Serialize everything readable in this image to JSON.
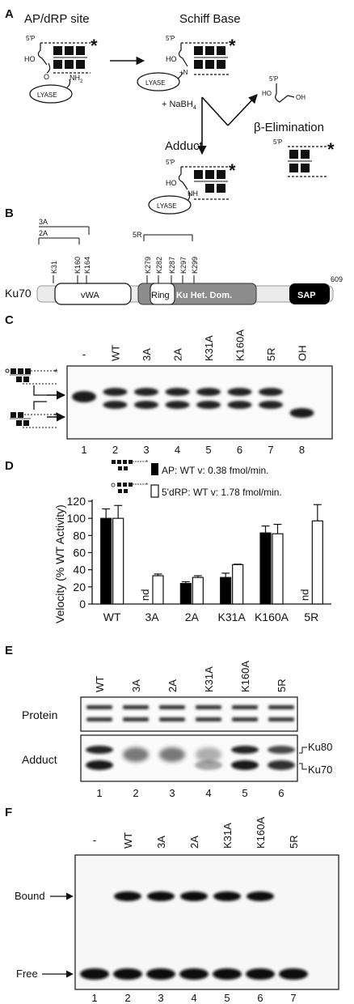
{
  "panelA": {
    "letter": "A",
    "ap_site": "AP/dRP site",
    "schiff": "Schiff Base",
    "adduct": "Adduct",
    "beta": "β-Elimination",
    "nabh4": "+ NaBH",
    "nabh4_sub": "4",
    "p5": "5'P",
    "ho": "HO",
    "o": "O",
    "nh2": "NH",
    "nh2_sub": "2",
    "plus_n": "+N",
    "nh": "NH",
    "oh": "OH",
    "lyase": "LYASE"
  },
  "panelB": {
    "letter": "B",
    "protein": "Ku70",
    "end": "609",
    "domains": [
      "vWA",
      "Ring",
      "Ku Het. Dom.",
      "SAP"
    ],
    "group_3a": "3A",
    "group_2a": "2A",
    "group_5r": "5R",
    "sites_left": [
      "K31",
      "K160",
      "K164"
    ],
    "sites_right": [
      "K279",
      "K282",
      "K287",
      "K297",
      "K299"
    ]
  },
  "panelC": {
    "letter": "C",
    "lanes": [
      "-",
      "WT",
      "3A",
      "2A",
      "K31A",
      "K160A",
      "5R",
      "OH"
    ],
    "numbers": [
      "1",
      "2",
      "3",
      "4",
      "5",
      "6",
      "7",
      "8"
    ]
  },
  "panelD": {
    "letter": "D",
    "legend_ap": "AP: WT v: 0.38 fmol/min.",
    "legend_drp": "5'dRP: WT v: 1.78 fmol/min.",
    "nd": "nd",
    "chart_data": {
      "type": "bar",
      "categories": [
        "WT",
        "3A",
        "2A",
        "K31A",
        "K160A",
        "5R"
      ],
      "ylabel": "Velocity (% WT Activity)",
      "ylim": [
        0,
        120
      ],
      "yticks": [
        0,
        20,
        40,
        60,
        80,
        100,
        120
      ],
      "series": [
        {
          "name": "AP",
          "color": "#000000",
          "values": [
            100,
            0,
            24,
            31,
            83,
            0
          ],
          "errors": [
            11,
            0,
            2,
            5,
            8,
            0
          ]
        },
        {
          "name": "5'dRP",
          "color": "#ffffff",
          "values": [
            100,
            33,
            31,
            46,
            82,
            97
          ],
          "errors": [
            15,
            2,
            2,
            0.5,
            11,
            19
          ]
        }
      ],
      "not_detected": [
        [
          1,
          0
        ],
        [
          5,
          0
        ]
      ]
    }
  },
  "panelE": {
    "letter": "E",
    "lanes": [
      "WT",
      "3A",
      "2A",
      "K31A",
      "K160A",
      "5R"
    ],
    "numbers": [
      "1",
      "2",
      "3",
      "4",
      "5",
      "6"
    ],
    "protein_label": "Protein",
    "adduct_label": "Adduct",
    "ku80": "Ku80",
    "ku70": "Ku70"
  },
  "panelF": {
    "letter": "F",
    "lanes": [
      "-",
      "WT",
      "3A",
      "2A",
      "K31A",
      "K160A",
      "5R"
    ],
    "numbers": [
      "1",
      "2",
      "3",
      "4",
      "5",
      "6",
      "7"
    ],
    "bound": "Bound",
    "free": "Free"
  }
}
